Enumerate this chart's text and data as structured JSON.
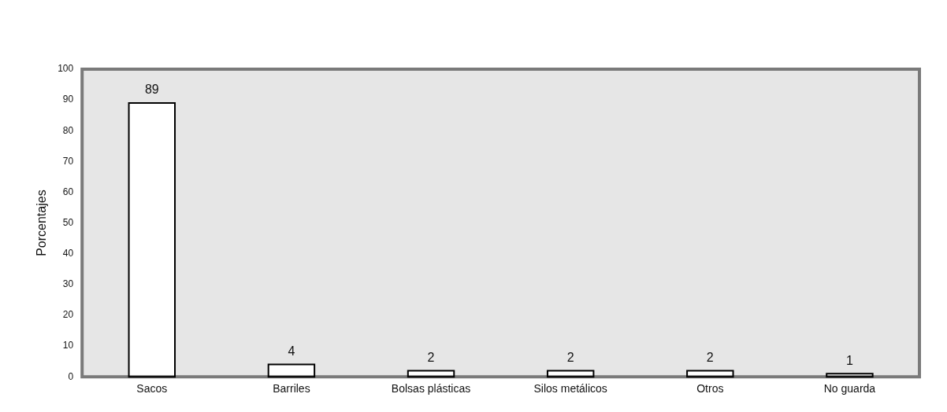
{
  "chart_data": {
    "type": "bar",
    "ylabel": "Porcentajes",
    "categories": [
      "Sacos",
      "Barriles",
      "Bolsas plásticas",
      "Silos metálicos",
      "Otros",
      "No guarda"
    ],
    "values": [
      89,
      4,
      2,
      2,
      2,
      1
    ],
    "color": "#ffffff",
    "ylim": [
      0,
      100
    ],
    "yticks": [
      0,
      10,
      20,
      30,
      40,
      50,
      60,
      70,
      80,
      90,
      100
    ],
    "grid": false,
    "legend": false,
    "data_labels": true
  }
}
